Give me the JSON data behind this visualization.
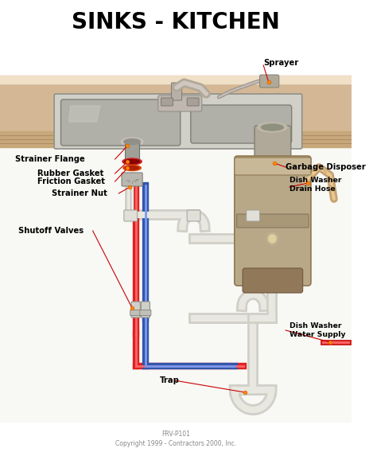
{
  "title": "SINKS - KITCHEN",
  "title_fontsize": 20,
  "title_fontweight": "black",
  "title_color": "#000000",
  "background_color": "#ffffff",
  "footer_line1": "FRV-P101",
  "footer_line2": "Copyright 1999 - Contractors 2000, Inc.",
  "label_fontsize": 7.2,
  "label_fontweight": "bold",
  "label_color": "#000000",
  "line_color": "#cc0000",
  "dot_color": "#ff8800",
  "dot_size": 3.5,
  "counter_color": "#d4b896",
  "counter_dark": "#c8a87a",
  "counter_light": "#e8d8c0",
  "counter_stripe": "#f0e0c8",
  "sink_metal": "#c8c8c0",
  "sink_dark": "#909088",
  "sink_basin": "#b0b0a8",
  "basin_inner": "#989890",
  "faucet_color": "#b8b8b0",
  "pipe_red": "#cc2222",
  "pipe_blue": "#3355aa",
  "pipe_white": "#d8d8d0",
  "pipe_tan": "#c8a070",
  "pipe_orange": "#cc6600",
  "disposer_body": "#b8a888",
  "disposer_top": "#c8b898",
  "disposer_dark": "#907858"
}
